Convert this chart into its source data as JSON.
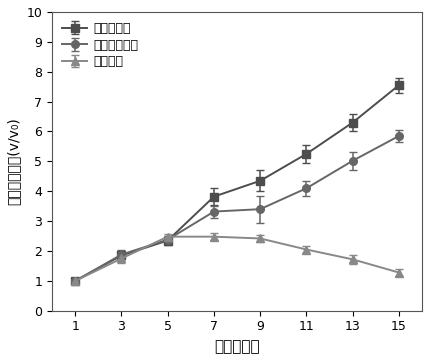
{
  "x": [
    1,
    3,
    5,
    7,
    9,
    11,
    13,
    15
  ],
  "series": [
    {
      "label": "空白对照组",
      "y": [
        1.0,
        1.85,
        2.35,
        3.82,
        4.35,
        5.25,
        6.3,
        7.55
      ],
      "yerr": [
        0.05,
        0.12,
        0.15,
        0.28,
        0.35,
        0.3,
        0.28,
        0.25
      ],
      "marker": "s",
      "color": "#4d4d4d",
      "linestyle": "-"
    },
    {
      "label": "盐酸阿霞素组",
      "y": [
        1.0,
        1.88,
        2.38,
        3.32,
        3.4,
        4.1,
        5.02,
        5.85
      ],
      "yerr": [
        0.05,
        0.15,
        0.12,
        0.2,
        0.45,
        0.25,
        0.3,
        0.2
      ],
      "marker": "o",
      "color": "#666666",
      "linestyle": "-"
    },
    {
      "label": "终制剂组",
      "y": [
        1.0,
        1.75,
        2.48,
        2.48,
        2.42,
        2.05,
        1.72,
        1.28
      ],
      "yerr": [
        0.05,
        0.15,
        0.1,
        0.12,
        0.12,
        0.12,
        0.15,
        0.12
      ],
      "marker": "^",
      "color": "#888888",
      "linestyle": "-"
    }
  ],
  "xlabel": "时间（天）",
  "ylabel": "相对肿瘾体积(v/v₀)",
  "xlim": [
    0,
    16
  ],
  "ylim": [
    0,
    10
  ],
  "xticks": [
    1,
    3,
    5,
    7,
    9,
    11,
    13,
    15
  ],
  "yticks": [
    0,
    1,
    2,
    3,
    4,
    5,
    6,
    7,
    8,
    9,
    10
  ],
  "legend_loc": "upper left",
  "figsize": [
    4.29,
    3.61
  ],
  "dpi": 100,
  "bg_color": "#f0f0f0"
}
